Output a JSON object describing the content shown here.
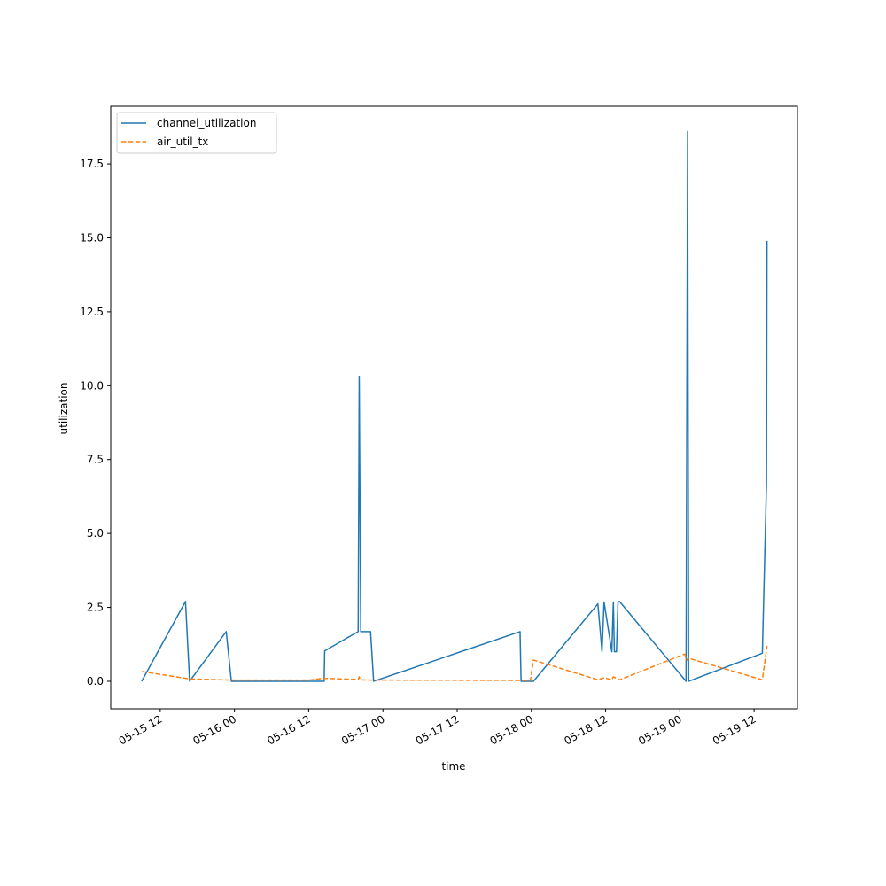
{
  "chart_data": {
    "type": "line",
    "title": "",
    "xlabel": "time",
    "ylabel": "utilization",
    "x_axis_type": "datetime",
    "xlim": [
      "2024-05-15T04:00",
      "2024-05-19T19:00"
    ],
    "ylim": [
      -0.93,
      19.45
    ],
    "grid": false,
    "legend_position": "upper left",
    "x_tick_labels": [
      "05-15 12",
      "05-16 00",
      "05-16 12",
      "05-17 00",
      "05-17 12",
      "05-18 00",
      "05-18 12",
      "05-19 00",
      "05-19 12"
    ],
    "x_tick_dates": [
      "2024-05-15T12:00",
      "2024-05-16T00:00",
      "2024-05-16T12:00",
      "2024-05-17T00:00",
      "2024-05-17T12:00",
      "2024-05-18T00:00",
      "2024-05-18T12:00",
      "2024-05-19T00:00",
      "2024-05-19T12:00"
    ],
    "y_tick_labels": [
      "0.0",
      "2.5",
      "5.0",
      "7.5",
      "10.0",
      "12.5",
      "15.0",
      "17.5"
    ],
    "y_tick_values": [
      0,
      2.5,
      5,
      7.5,
      10,
      12.5,
      15,
      17.5
    ],
    "series": [
      {
        "name": "channel_utilization",
        "color": "#1f77b4",
        "style": "solid",
        "points": [
          [
            "2024-05-15T09:00",
            0.0
          ],
          [
            "2024-05-15T16:05",
            2.7
          ],
          [
            "2024-05-15T16:45",
            0.0
          ],
          [
            "2024-05-15T22:40",
            1.68
          ],
          [
            "2024-05-15T23:30",
            0.0
          ],
          [
            "2024-05-16T14:30",
            0.0
          ],
          [
            "2024-05-16T14:35",
            1.03
          ],
          [
            "2024-05-16T20:00",
            1.68
          ],
          [
            "2024-05-16T20:10",
            10.32
          ],
          [
            "2024-05-16T20:25",
            1.68
          ],
          [
            "2024-05-16T22:00",
            1.68
          ],
          [
            "2024-05-16T22:30",
            0.0
          ],
          [
            "2024-05-17T22:10",
            1.68
          ],
          [
            "2024-05-17T22:20",
            0.0
          ],
          [
            "2024-05-18T00:20",
            0.0
          ],
          [
            "2024-05-18T10:45",
            2.62
          ],
          [
            "2024-05-18T11:25",
            1.0
          ],
          [
            "2024-05-18T11:45",
            2.68
          ],
          [
            "2024-05-18T13:00",
            1.0
          ],
          [
            "2024-05-18T13:15",
            2.68
          ],
          [
            "2024-05-18T13:25",
            1.0
          ],
          [
            "2024-05-18T13:45",
            1.0
          ],
          [
            "2024-05-18T14:00",
            2.68
          ],
          [
            "2024-05-18T14:15",
            2.7
          ],
          [
            "2024-05-19T01:00",
            0.0
          ],
          [
            "2024-05-19T01:15",
            18.6
          ],
          [
            "2024-05-19T01:25",
            0.0
          ],
          [
            "2024-05-19T13:20",
            0.95
          ],
          [
            "2024-05-19T14:00",
            6.7
          ],
          [
            "2024-05-19T14:05",
            14.9
          ]
        ]
      },
      {
        "name": "air_util_tx",
        "color": "#ff7f0e",
        "style": "dashed",
        "points": [
          [
            "2024-05-15T09:00",
            0.33
          ],
          [
            "2024-05-15T16:45",
            0.08
          ],
          [
            "2024-05-15T23:30",
            0.04
          ],
          [
            "2024-05-16T12:00",
            0.04
          ],
          [
            "2024-05-16T14:30",
            0.1
          ],
          [
            "2024-05-16T20:00",
            0.06
          ],
          [
            "2024-05-16T20:10",
            0.15
          ],
          [
            "2024-05-16T20:20",
            0.05
          ],
          [
            "2024-05-16T22:30",
            0.04
          ],
          [
            "2024-05-17T22:10",
            0.03
          ],
          [
            "2024-05-17T23:50",
            0.03
          ],
          [
            "2024-05-18T00:20",
            0.72
          ],
          [
            "2024-05-18T10:45",
            0.05
          ],
          [
            "2024-05-18T11:45",
            0.12
          ],
          [
            "2024-05-18T13:00",
            0.05
          ],
          [
            "2024-05-18T13:15",
            0.15
          ],
          [
            "2024-05-18T14:15",
            0.05
          ],
          [
            "2024-05-19T00:45",
            0.92
          ],
          [
            "2024-05-19T01:15",
            0.7
          ],
          [
            "2024-05-19T01:25",
            0.78
          ],
          [
            "2024-05-19T13:20",
            0.05
          ],
          [
            "2024-05-19T14:05",
            1.2
          ]
        ]
      }
    ]
  }
}
